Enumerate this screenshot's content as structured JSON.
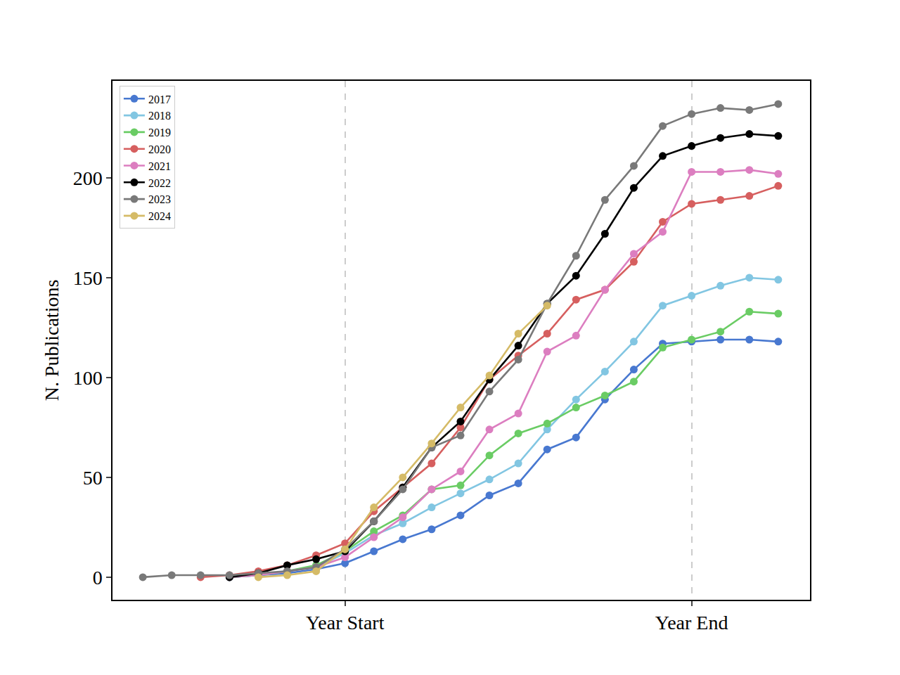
{
  "chart_data": {
    "type": "line",
    "y_label": "N. Publications",
    "x": [
      -7,
      -6,
      -5,
      -4,
      -3,
      -2,
      -1,
      0,
      1,
      2,
      3,
      4,
      5,
      6,
      7,
      8,
      9,
      10,
      11,
      12,
      13,
      14,
      15
    ],
    "xlim": [
      -8.05,
      16.1
    ],
    "xticks": [
      {
        "value": 0,
        "label": "Year Start"
      },
      {
        "value": 12,
        "label": "Year End"
      }
    ],
    "ylim": [
      -11.3,
      248.6
    ],
    "yticks": [
      0,
      50,
      100,
      150,
      200
    ],
    "grid": "x",
    "legend": "upper left",
    "marker": "circle",
    "line_style": "solid",
    "series": [
      {
        "name": "2017",
        "color": "#4878d0",
        "values": [
          null,
          null,
          null,
          0,
          1,
          2,
          4,
          7,
          13,
          19,
          24,
          31,
          41,
          47,
          64,
          70,
          89,
          104,
          117,
          118,
          119,
          119,
          118
        ]
      },
      {
        "name": "2018",
        "color": "#82c6e2",
        "values": [
          null,
          null,
          null,
          0,
          1,
          3,
          5,
          12,
          21,
          27,
          35,
          42,
          49,
          57,
          74,
          89,
          103,
          118,
          136,
          141,
          146,
          150,
          149
        ]
      },
      {
        "name": "2019",
        "color": "#6acc64",
        "values": [
          null,
          null,
          null,
          0,
          1,
          3,
          6,
          13,
          23,
          31,
          44,
          46,
          61,
          72,
          77,
          85,
          91,
          98,
          115,
          119,
          123,
          133,
          132
        ]
      },
      {
        "name": "2020",
        "color": "#d65f5f",
        "values": [
          null,
          null,
          0,
          1,
          3,
          6,
          11,
          17,
          33,
          45,
          57,
          75,
          99,
          111,
          122,
          139,
          144,
          158,
          178,
          187,
          189,
          191,
          196
        ]
      },
      {
        "name": "2021",
        "color": "#dc7ec0",
        "values": [
          null,
          null,
          null,
          0,
          1,
          3,
          5,
          10,
          20,
          30,
          44,
          53,
          74,
          82,
          113,
          121,
          144,
          162,
          173,
          203,
          203,
          204,
          202
        ]
      },
      {
        "name": "2022",
        "color": "#000000",
        "values": [
          null,
          null,
          null,
          0,
          2,
          6,
          9,
          13,
          28,
          45,
          65,
          78,
          99,
          116,
          137,
          151,
          172,
          195,
          211,
          216,
          220,
          222,
          221
        ]
      },
      {
        "name": "2023",
        "color": "#797979",
        "values": [
          0,
          1,
          1,
          1,
          2,
          3,
          5,
          14,
          28,
          44,
          65,
          71,
          93,
          109,
          137,
          161,
          189,
          206,
          226,
          232,
          235,
          234,
          237
        ]
      },
      {
        "name": "2024",
        "color": "#d5bb67",
        "values": [
          null,
          null,
          null,
          null,
          0,
          1,
          3,
          14,
          35,
          50,
          67,
          85,
          101,
          122,
          136,
          null,
          null,
          null,
          null,
          null,
          null,
          null,
          null
        ]
      }
    ]
  }
}
